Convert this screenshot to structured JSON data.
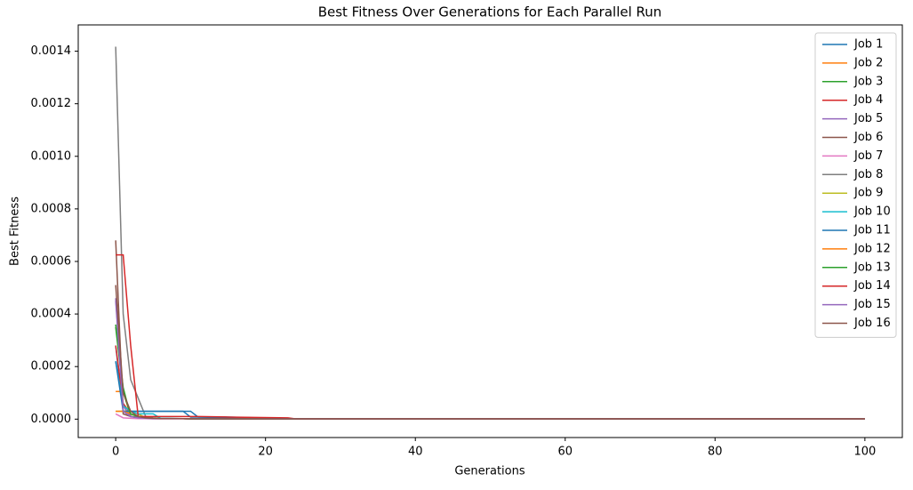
{
  "chart_data": {
    "type": "line",
    "title": "Best Fitness Over Generations for Each Parallel Run",
    "xlabel": "Generations",
    "ylabel": "Best Fitness",
    "x": [
      0,
      1,
      2,
      3,
      4,
      5,
      6,
      9,
      10,
      11,
      15,
      23,
      24,
      100
    ],
    "xlim": [
      -5,
      105
    ],
    "xticks": [
      0,
      20,
      40,
      60,
      80,
      100
    ],
    "ylim": [
      -7e-05,
      0.0015
    ],
    "yticks": [
      {
        "value": 0,
        "label": "0.0000"
      },
      {
        "value": 0.0002,
        "label": "0.0002"
      },
      {
        "value": 0.0004,
        "label": "0.0004"
      },
      {
        "value": 0.0006,
        "label": "0.0006"
      },
      {
        "value": 0.0008,
        "label": "0.0008"
      },
      {
        "value": 0.001,
        "label": "0.0010"
      },
      {
        "value": 0.0012,
        "label": "0.0012"
      },
      {
        "value": 0.0014,
        "label": "0.0014"
      }
    ],
    "legend": "upper right",
    "series": [
      {
        "name": "Job 1",
        "color": "#1f77b4",
        "values": [
          0.00028,
          3e-05,
          3e-05,
          3e-05,
          3e-05,
          3e-05,
          3e-05,
          3e-05,
          3e-05,
          8e-06,
          8e-06,
          2e-06,
          2e-06,
          1e-06
        ]
      },
      {
        "name": "Job 2",
        "color": "#ff7f0e",
        "values": [
          0.000105,
          0.000105,
          1e-05,
          5e-06,
          3e-06,
          3e-06,
          2e-06,
          2e-06,
          2e-06,
          1e-06,
          1e-06,
          1e-06,
          1e-06,
          1e-06
        ]
      },
      {
        "name": "Job 3",
        "color": "#2ca02c",
        "values": [
          0.00036,
          0.00012,
          1e-05,
          8e-06,
          5e-06,
          3e-06,
          2e-06,
          2e-06,
          2e-06,
          1e-06,
          1e-06,
          1e-06,
          1e-06,
          1e-06
        ]
      },
      {
        "name": "Job 4",
        "color": "#d62728",
        "values": [
          0.00028,
          6e-05,
          2e-05,
          1e-05,
          5e-06,
          3e-06,
          2e-06,
          2e-06,
          2e-06,
          1e-06,
          1e-06,
          1e-06,
          1e-06,
          1e-06
        ]
      },
      {
        "name": "Job 5",
        "color": "#9467bd",
        "values": [
          0.00046,
          5e-05,
          1e-05,
          5e-06,
          3e-06,
          2e-06,
          2e-06,
          2e-06,
          1e-06,
          1e-06,
          1e-06,
          1e-06,
          1e-06,
          1e-06
        ]
      },
      {
        "name": "Job 6",
        "color": "#8c564b",
        "values": [
          0.00068,
          2e-05,
          1e-05,
          5e-06,
          3e-06,
          2e-06,
          2e-06,
          2e-06,
          1e-06,
          1e-06,
          1e-06,
          1e-06,
          1e-06,
          1e-06
        ]
      },
      {
        "name": "Job 7",
        "color": "#e377c2",
        "values": [
          2e-05,
          5e-06,
          3e-06,
          2e-06,
          2e-06,
          1e-06,
          1e-06,
          1e-06,
          1e-06,
          1e-06,
          1e-06,
          1e-06,
          1e-06,
          1e-06
        ]
      },
      {
        "name": "Job 8",
        "color": "#7f7f7f",
        "values": [
          0.001417,
          0.0004,
          0.00015,
          8e-05,
          1e-05,
          5e-06,
          3e-06,
          2e-06,
          2e-06,
          1e-06,
          1e-06,
          1e-06,
          1e-06,
          1e-06
        ]
      },
      {
        "name": "Job 9",
        "color": "#bcbd22",
        "values": [
          3e-05,
          3e-05,
          3e-05,
          2e-05,
          5e-06,
          3e-06,
          2e-06,
          2e-06,
          1e-06,
          1e-06,
          1e-06,
          1e-06,
          1e-06,
          1e-06
        ]
      },
      {
        "name": "Job 10",
        "color": "#17becf",
        "values": [
          0.00022,
          5e-05,
          3e-05,
          2e-05,
          2e-05,
          2e-05,
          3e-06,
          2e-06,
          2e-06,
          1e-06,
          1e-06,
          1e-06,
          1e-06,
          1e-06
        ]
      },
      {
        "name": "Job 11",
        "color": "#1f77b4",
        "values": [
          0.00022,
          3e-05,
          3e-05,
          3e-05,
          3e-05,
          3e-05,
          3e-05,
          3e-05,
          8e-06,
          8e-06,
          5e-06,
          2e-06,
          2e-06,
          1e-06
        ]
      },
      {
        "name": "Job 12",
        "color": "#ff7f0e",
        "values": [
          3e-05,
          3e-05,
          2e-05,
          1e-05,
          5e-06,
          3e-06,
          2e-06,
          2e-06,
          1e-06,
          1e-06,
          1e-06,
          1e-06,
          1e-06,
          1e-06
        ]
      },
      {
        "name": "Job 13",
        "color": "#2ca02c",
        "values": [
          0.00035,
          0.0001,
          2e-05,
          1e-05,
          5e-06,
          3e-06,
          2e-06,
          2e-06,
          1e-06,
          1e-06,
          1e-06,
          1e-06,
          1e-06,
          1e-06
        ]
      },
      {
        "name": "Job 14",
        "color": "#d62728",
        "values": [
          0.000625,
          0.000625,
          0.00028,
          1e-05,
          1e-05,
          1e-05,
          1e-05,
          1e-05,
          1e-05,
          1e-05,
          8e-06,
          5e-06,
          1e-06,
          1e-06
        ]
      },
      {
        "name": "Job 15",
        "color": "#9467bd",
        "values": [
          0.00045,
          3e-05,
          1e-05,
          5e-06,
          3e-06,
          2e-06,
          2e-06,
          2e-06,
          1e-06,
          1e-06,
          1e-06,
          1e-06,
          1e-06,
          1e-06
        ]
      },
      {
        "name": "Job 16",
        "color": "#8c564b",
        "values": [
          0.00051,
          0.0001,
          3e-05,
          1e-05,
          5e-06,
          3e-06,
          2e-06,
          2e-06,
          1e-06,
          1e-06,
          1e-06,
          1e-06,
          1e-06,
          1e-06
        ]
      }
    ]
  }
}
